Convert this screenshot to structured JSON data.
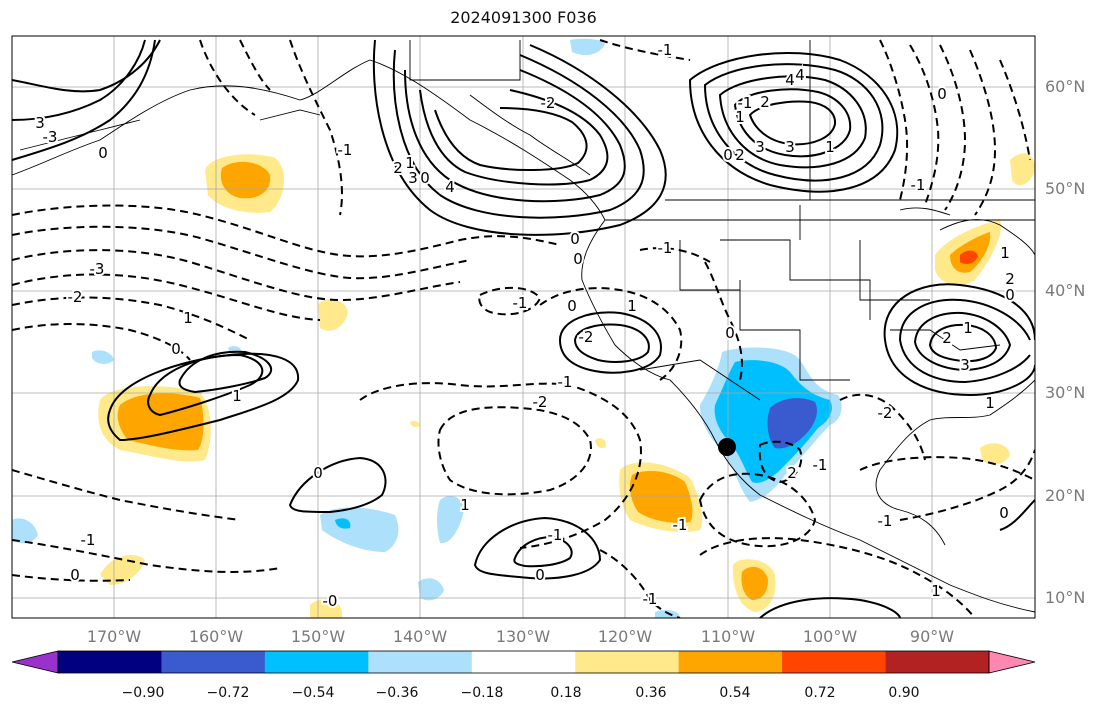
{
  "title": "2024091300 F036",
  "lat_labels": [
    "60°N",
    "50°N",
    "40°N",
    "30°N",
    "20°N",
    "10°N"
  ],
  "lon_labels": [
    "170°W",
    "160°W",
    "150°W",
    "140°W",
    "130°W",
    "120°W",
    "110°W",
    "100°W",
    "90°W"
  ],
  "colorbar": {
    "colors": [
      "#9932cc",
      "#000080",
      "#3a5bcf",
      "#00bfff",
      "#ade0fa",
      "#ffffff",
      "#ffe98a",
      "#ffa500",
      "#ff4500",
      "#b22222",
      "#ff88b0"
    ],
    "tick_labels": [
      "−0.90",
      "−0.72",
      "−0.54",
      "−0.36",
      "−0.18",
      "0.18",
      "0.36",
      "0.54",
      "0.72",
      "0.90"
    ]
  },
  "contour_labels": [
    "-1",
    "4",
    "3",
    "2",
    "1",
    "0",
    "-1",
    "-2",
    "-3",
    "3",
    "0",
    "-1",
    "0",
    "1",
    "2",
    "3",
    "4",
    "4",
    "3",
    "2",
    "1",
    "-1",
    "-2",
    "-3",
    "0",
    "-1",
    "0",
    "-2",
    "1",
    "-2",
    "-1",
    "0",
    "1",
    "1",
    "0",
    "0",
    "-1",
    "1",
    "-1",
    "0",
    "-2",
    "2",
    "-1",
    "0",
    "-1",
    "1",
    "0",
    "1",
    "-1",
    "-1",
    "0",
    "-0",
    "-1",
    "0",
    "0",
    "1",
    "2",
    "3",
    "1",
    "2"
  ],
  "marker": "storm-center"
}
